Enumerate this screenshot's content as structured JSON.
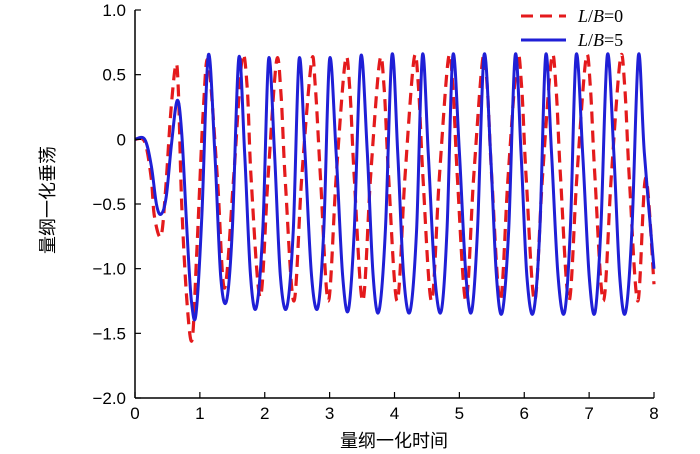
{
  "chart_data": {
    "type": "line",
    "xlabel": "量纲一化时间",
    "ylabel": "量纲一化垂荡",
    "xlim": [
      0,
      8
    ],
    "ylim": [
      -2.0,
      1.0
    ],
    "x_ticks": [
      0,
      1,
      2,
      3,
      4,
      5,
      6,
      7,
      8
    ],
    "x_tick_labels": [
      "0",
      "1",
      "2",
      "3",
      "4",
      "5",
      "6",
      "7",
      "8"
    ],
    "y_ticks": [
      1.0,
      0.5,
      0,
      -0.5,
      -1.0,
      -1.5,
      -2.0
    ],
    "y_tick_labels": [
      "1.0",
      "0.5",
      "0",
      "−0.5",
      "−1.0",
      "−1.5",
      "−2.0"
    ],
    "grid": false,
    "legend_position": "top-right",
    "series": [
      {
        "name": "L/B=0",
        "name_parts": {
          "var1": "L",
          "slash": "/",
          "var2": "B",
          "eq": "=0"
        },
        "color": "#e41a1c",
        "style": "dashed",
        "x": [
          0,
          0.15,
          0.25,
          0.3,
          0.4,
          0.47,
          0.55,
          0.63,
          0.67,
          0.72,
          0.8,
          0.88,
          0.95,
          1.05,
          1.13,
          1.27,
          1.38,
          1.52,
          1.65,
          1.73,
          1.79,
          1.93,
          2.05,
          2.18,
          2.25,
          2.32,
          2.45,
          2.57,
          2.72,
          2.78,
          2.86,
          2.98,
          3.1,
          3.24,
          3.31,
          3.38,
          3.51,
          3.63,
          3.77,
          3.84,
          3.91,
          4.04,
          4.16,
          4.3,
          4.37,
          4.44,
          4.57,
          4.69,
          4.83,
          4.9,
          4.97,
          5.1,
          5.22,
          5.36,
          5.43,
          5.5,
          5.63,
          5.75,
          5.89,
          5.96,
          6.03,
          6.16,
          6.28,
          6.42,
          6.49,
          6.56,
          6.69,
          6.81,
          6.95,
          7.02,
          7.09,
          7.22,
          7.34,
          7.48,
          7.55,
          7.62,
          7.75,
          7.87,
          8.0
        ],
        "y": [
          0,
          -0.02,
          -0.3,
          -0.6,
          -0.75,
          -0.4,
          0.2,
          0.58,
          0.35,
          -0.5,
          -1.25,
          -1.55,
          -0.9,
          0.2,
          0.6,
          -0.3,
          -1.15,
          -0.3,
          0.62,
          0.4,
          -0.3,
          -1.22,
          -0.3,
          0.6,
          0.35,
          -0.35,
          -1.25,
          -0.3,
          0.6,
          0.4,
          -0.3,
          -1.25,
          -0.3,
          0.6,
          0.4,
          -0.3,
          -1.25,
          -0.3,
          0.6,
          0.4,
          -0.3,
          -1.25,
          -0.3,
          0.62,
          0.4,
          -0.3,
          -1.25,
          -0.3,
          0.62,
          0.4,
          -0.3,
          -1.25,
          -0.3,
          0.62,
          0.4,
          -0.3,
          -1.25,
          -0.3,
          0.62,
          0.4,
          -0.3,
          -1.25,
          -0.3,
          0.62,
          0.4,
          -0.3,
          -1.25,
          -0.3,
          0.62,
          0.4,
          -0.3,
          -1.25,
          -0.3,
          0.62,
          0.4,
          -0.3,
          -1.25,
          -0.3,
          -1.12
        ]
      },
      {
        "name": "L/B=5",
        "name_parts": {
          "var1": "L",
          "slash": "/",
          "var2": "B",
          "eq": "=5"
        },
        "color": "#1f1fd6",
        "style": "solid",
        "x": [
          0,
          0.15,
          0.25,
          0.33,
          0.4,
          0.48,
          0.56,
          0.65,
          0.72,
          0.8,
          0.87,
          0.94,
          1.03,
          1.13,
          1.23,
          1.32,
          1.41,
          1.5,
          1.6,
          1.69,
          1.78,
          1.87,
          1.97,
          2.06,
          2.15,
          2.24,
          2.34,
          2.44,
          2.53,
          2.62,
          2.72,
          2.82,
          2.91,
          3.0,
          3.1,
          3.2,
          3.29,
          3.38,
          3.48,
          3.58,
          3.67,
          3.76,
          3.86,
          3.96,
          4.05,
          4.14,
          4.24,
          4.34,
          4.43,
          4.52,
          4.62,
          4.72,
          4.81,
          4.9,
          5.0,
          5.1,
          5.19,
          5.28,
          5.38,
          5.48,
          5.57,
          5.66,
          5.76,
          5.86,
          5.95,
          6.04,
          6.14,
          6.24,
          6.33,
          6.42,
          6.52,
          6.62,
          6.71,
          6.8,
          6.9,
          7.0,
          7.09,
          7.18,
          7.28,
          7.38,
          7.47,
          7.56,
          7.66,
          7.76,
          7.85,
          8.0
        ],
        "y": [
          0,
          0,
          -0.2,
          -0.5,
          -0.58,
          -0.45,
          -0.05,
          0.3,
          0.05,
          -0.7,
          -1.25,
          -1.35,
          -0.6,
          0.65,
          -0.1,
          -1.05,
          -1.25,
          -0.7,
          0.63,
          -0.1,
          -1.05,
          -1.3,
          -0.7,
          0.62,
          -0.1,
          -1.05,
          -1.3,
          -0.7,
          0.62,
          -0.1,
          -1.05,
          -1.3,
          -0.7,
          0.62,
          -0.1,
          -1.05,
          -1.32,
          -0.7,
          0.64,
          -0.1,
          -1.05,
          -1.33,
          -0.7,
          0.65,
          -0.1,
          -1.05,
          -1.33,
          -0.7,
          0.65,
          -0.1,
          -1.05,
          -1.33,
          -0.7,
          0.65,
          -0.1,
          -1.05,
          -1.33,
          -0.7,
          0.65,
          -0.1,
          -1.05,
          -1.34,
          -0.7,
          0.65,
          -0.1,
          -1.05,
          -1.34,
          -0.7,
          0.65,
          -0.1,
          -1.05,
          -1.34,
          -0.7,
          0.65,
          -0.1,
          -1.05,
          -1.34,
          -0.7,
          0.65,
          -0.1,
          -1.05,
          -1.34,
          -0.7,
          0.65,
          -0.1,
          -1.0
        ]
      }
    ]
  }
}
